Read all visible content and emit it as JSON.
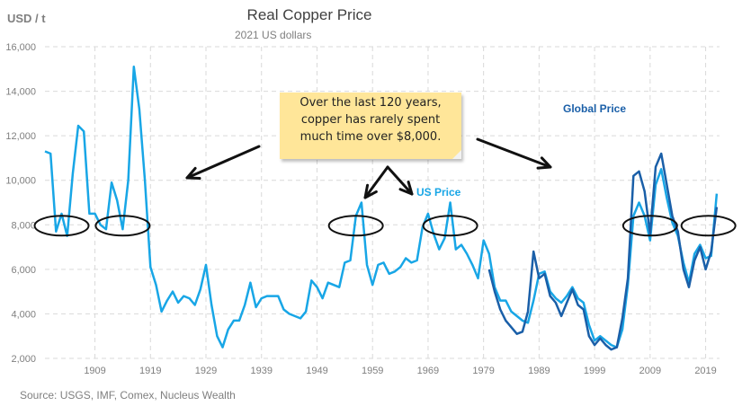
{
  "chart_data": {
    "type": "line",
    "title": "Real Copper Price",
    "subtitle": "2021 US dollars",
    "ylabel": "USD / t",
    "source": "Source: USGS, IMF, Comex, Nucleus Wealth",
    "xlim": [
      1900,
      2021.5
    ],
    "ylim": [
      2000,
      16000
    ],
    "yticks": [
      2000,
      4000,
      6000,
      8000,
      10000,
      12000,
      14000,
      16000
    ],
    "ytick_labels": [
      "2,000",
      "4,000",
      "6,000",
      "8,000",
      "10,000",
      "12,000",
      "14,000",
      "16,000"
    ],
    "xticks": [
      1909,
      1919,
      1929,
      1939,
      1949,
      1959,
      1969,
      1979,
      1989,
      1999,
      2009,
      2019
    ],
    "xtick_labels": [
      "1909",
      "1919",
      "1929",
      "1939",
      "1949",
      "1959",
      "1969",
      "1979",
      "1989",
      "1999",
      "2009",
      "2019"
    ],
    "grid": true,
    "colors": {
      "us": "#18a6e6",
      "global": "#1a5fa8",
      "annotation": "#111111",
      "note_bg": "#ffe699"
    },
    "series": [
      {
        "name": "US Price",
        "x": [
          1900,
          1901,
          1902,
          1903,
          1904,
          1905,
          1906,
          1907,
          1908,
          1909,
          1910,
          1911,
          1912,
          1913,
          1914,
          1915,
          1916,
          1917,
          1918,
          1919,
          1920,
          1921,
          1922,
          1923,
          1924,
          1925,
          1926,
          1927,
          1928,
          1929,
          1930,
          1931,
          1932,
          1933,
          1934,
          1935,
          1936,
          1937,
          1938,
          1939,
          1940,
          1941,
          1942,
          1943,
          1944,
          1945,
          1946,
          1947,
          1948,
          1949,
          1950,
          1951,
          1952,
          1953,
          1954,
          1955,
          1956,
          1957,
          1958,
          1959,
          1960,
          1961,
          1962,
          1963,
          1964,
          1965,
          1966,
          1967,
          1968,
          1969,
          1970,
          1971,
          1972,
          1973,
          1974,
          1975,
          1976,
          1977,
          1978,
          1979,
          1980,
          1981,
          1982,
          1983,
          1984,
          1985,
          1986,
          1987,
          1988,
          1989,
          1990,
          1991,
          1992,
          1993,
          1994,
          1995,
          1996,
          1997,
          1998,
          1999,
          2000,
          2001,
          2002,
          2003,
          2004,
          2005,
          2006,
          2007,
          2008,
          2009,
          2010,
          2011,
          2012,
          2013,
          2014,
          2015,
          2016,
          2017,
          2018,
          2019,
          2020,
          2021
        ],
        "values": [
          11300,
          11200,
          7700,
          8500,
          7500,
          10300,
          12450,
          12200,
          8500,
          8500,
          8000,
          7800,
          9900,
          9100,
          7800,
          10000,
          15100,
          13200,
          10000,
          6100,
          5300,
          4100,
          4600,
          5000,
          4500,
          4800,
          4700,
          4400,
          5100,
          6200,
          4400,
          3000,
          2500,
          3300,
          3700,
          3700,
          4400,
          5400,
          4300,
          4700,
          4800,
          4800,
          4800,
          4200,
          4000,
          3900,
          3800,
          4100,
          5500,
          5200,
          4700,
          5400,
          5300,
          5200,
          6300,
          6400,
          8400,
          9000,
          6200,
          5300,
          6200,
          6300,
          5800,
          5900,
          6100,
          6500,
          6300,
          6400,
          7900,
          8500,
          7600,
          6900,
          7400,
          9000,
          6900,
          7100,
          6700,
          6200,
          5600,
          7300,
          6700,
          5200,
          4600,
          4600,
          4100,
          3900,
          3700,
          3600,
          4600,
          5800,
          5900,
          5000,
          4700,
          4500,
          4800,
          5200,
          4700,
          4500,
          3500,
          2800,
          3000,
          2800,
          2600,
          2500,
          3300,
          5300,
          8400,
          9000,
          8400,
          7300,
          9800,
          10500,
          9200,
          8100,
          7500,
          6300,
          5400,
          6700,
          7100,
          6500,
          6600,
          9400
        ]
      },
      {
        "name": "Global Price",
        "x": [
          1980,
          1981,
          1982,
          1983,
          1984,
          1985,
          1986,
          1987,
          1988,
          1989,
          1990,
          1991,
          1992,
          1993,
          1994,
          1995,
          1996,
          1997,
          1998,
          1999,
          2000,
          2001,
          2002,
          2003,
          2004,
          2005,
          2006,
          2007,
          2008,
          2009,
          2010,
          2011,
          2012,
          2013,
          2014,
          2015,
          2016,
          2017,
          2018,
          2019,
          2020,
          2021
        ],
        "values": [
          6000,
          5000,
          4200,
          3700,
          3400,
          3100,
          3200,
          4100,
          6800,
          5600,
          5800,
          4800,
          4500,
          3900,
          4500,
          5100,
          4400,
          4200,
          3000,
          2600,
          2900,
          2600,
          2400,
          2500,
          3800,
          5600,
          10200,
          10400,
          9500,
          7600,
          10600,
          11200,
          9800,
          8400,
          7700,
          6000,
          5200,
          6400,
          7000,
          6000,
          6800,
          8800
        ]
      }
    ],
    "annotations": {
      "note_lines": [
        "Over the last 120 years,",
        "copper has rarely spent",
        "much time over $8,000."
      ],
      "us_label": "US Price",
      "global_label": "Global Price"
    }
  }
}
